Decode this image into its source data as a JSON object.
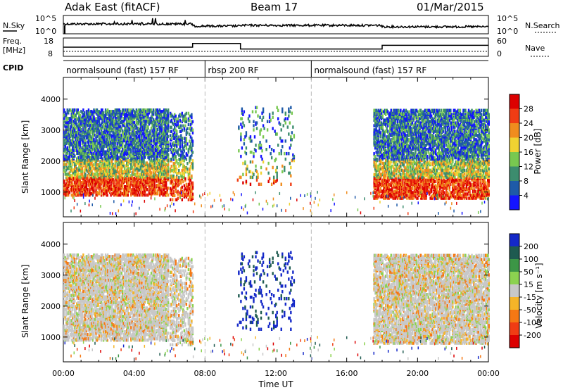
{
  "chart_data": {
    "type": "heatmap",
    "header": {
      "station": "Adak East (fitACF)",
      "beam": "Beam 17",
      "date": "01/Mar/2015"
    },
    "noise_panel": {
      "left_label": "N.Sky",
      "right_label": "N.Search",
      "left_ticks": [
        "10^5",
        "10^0"
      ],
      "right_ticks": [
        "10^5",
        "10^0"
      ]
    },
    "freq_panel": {
      "left_label_line1": "Freq.",
      "left_label_line2": "[MHz]",
      "left_ticks": [
        "18",
        "8"
      ],
      "right_ticks": [
        "60",
        "0"
      ],
      "right_label": "Nave",
      "freq_steps": [
        {
          "t0": 0,
          "t1": 7.3,
          "v": 13
        },
        {
          "t0": 7.3,
          "t1": 10.0,
          "v": 15
        },
        {
          "t0": 10.0,
          "t1": 18.0,
          "v": 12
        },
        {
          "t0": 18.0,
          "t1": 24,
          "v": 14
        }
      ]
    },
    "cpid": {
      "label": "CPID",
      "segments": [
        {
          "name": "normalsound (fast) 157 RF",
          "start": 0,
          "end": 8
        },
        {
          "name": "rbsp 200 RF",
          "start": 8,
          "end": 14
        },
        {
          "name": "normalsound (fast) 157 RF",
          "start": 14,
          "end": 24
        }
      ]
    },
    "xaxis": {
      "label": "Time UT",
      "ticks": [
        "00:00",
        "04:00",
        "08:00",
        "12:00",
        "16:00",
        "20:00",
        "00:00"
      ],
      "range": [
        0,
        24
      ]
    },
    "yaxis": {
      "label": "Slant Range [km]",
      "ticks": [
        "1000",
        "2000",
        "3000",
        "4000"
      ],
      "range": [
        200,
        4700
      ]
    },
    "power_panel": {
      "colorbar_label": "Power [dB]",
      "colorbar_ticks": [
        "4",
        "8",
        "12",
        "16",
        "20",
        "24",
        "28"
      ],
      "colors": [
        "#1414ff",
        "#1e5aa8",
        "#3c8c6e",
        "#78c850",
        "#f0d232",
        "#f08c1e",
        "#f03c14",
        "#dc0000"
      ],
      "scale": [
        0,
        32
      ]
    },
    "velocity_panel": {
      "colorbar_label": "Velocity [m s⁻¹]",
      "colorbar_ticks": [
        "200",
        "100",
        "50",
        "15",
        "-15",
        "-50",
        "-100",
        "-200"
      ],
      "colors": [
        "#1428c8",
        "#1e5a50",
        "#3c9646",
        "#8cd250",
        "#c8c8c8",
        "#f5b428",
        "#f57814",
        "#f03c14",
        "#dc0000"
      ]
    },
    "scatter_regions": [
      {
        "t0": 0.0,
        "t1": 5.9,
        "r0": 850,
        "r1": 3600,
        "density": "high"
      },
      {
        "t0": 6.0,
        "t1": 7.3,
        "r0": 700,
        "r1": 3500,
        "density": "medium"
      },
      {
        "t0": 9.8,
        "t1": 13.0,
        "r0": 1200,
        "r1": 3700,
        "density": "low"
      },
      {
        "t0": 17.5,
        "t1": 24.0,
        "r0": 750,
        "r1": 3600,
        "density": "high"
      }
    ]
  }
}
